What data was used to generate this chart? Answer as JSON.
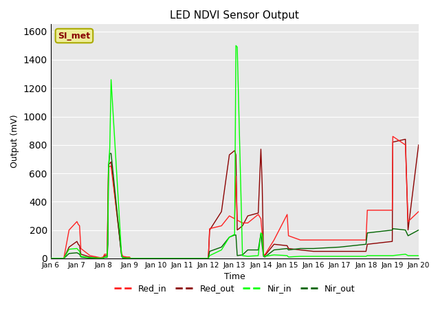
{
  "title": "LED NDVI Sensor Output",
  "xlabel": "Time",
  "ylabel": "Output (mV)",
  "ylim": [
    0,
    1650
  ],
  "yticks": [
    0,
    200,
    400,
    600,
    800,
    1000,
    1200,
    1400,
    1600
  ],
  "bg_color": "#e8e8e8",
  "fig_color": "#ffffff",
  "annotation_text": "SI_met",
  "annotation_bg": "#eeee99",
  "annotation_fg": "#880000",
  "annotation_border": "#aaaa00",
  "colors": {
    "Red_in": "#ff2020",
    "Red_out": "#8b0000",
    "Nir_in": "#00ff00",
    "Nir_out": "#006400"
  },
  "xtick_positions": [
    6,
    7,
    8,
    9,
    10,
    11,
    12,
    13,
    14,
    15,
    16,
    17,
    18,
    19,
    20
  ],
  "xtick_labels": [
    "Jan 6",
    "Jan 7",
    "Jan 8",
    "Jan 9",
    "Jan 10",
    "Jan 11",
    "Jan 12",
    "Jan 13",
    "Jan 14",
    "Jan 15",
    "Jan 16",
    "Jan 17",
    "Jan 18",
    "Jan 19",
    "Jan 20"
  ],
  "xlim": [
    6,
    20
  ],
  "Red_in_x": [
    6.0,
    6.5,
    6.7,
    7.0,
    7.05,
    7.1,
    7.15,
    7.5,
    7.9,
    8.0,
    8.05,
    8.15,
    8.18,
    8.2,
    8.25,
    8.3,
    8.7,
    8.75,
    8.9,
    9.0,
    9.05,
    12.0,
    12.05,
    12.5,
    12.8,
    13.0,
    13.05,
    13.1,
    13.3,
    13.5,
    13.9,
    14.0,
    14.05,
    14.1,
    14.15,
    14.5,
    15.0,
    15.05,
    15.5,
    16.0,
    16.5,
    17.0,
    17.5,
    18.0,
    18.05,
    19.0,
    19.02,
    19.5,
    19.6,
    20.0
  ],
  "Red_in_y": [
    0,
    0,
    200,
    260,
    240,
    230,
    70,
    20,
    5,
    10,
    30,
    30,
    420,
    640,
    650,
    650,
    35,
    15,
    10,
    10,
    0,
    0,
    210,
    230,
    300,
    280,
    580,
    270,
    250,
    250,
    310,
    280,
    170,
    30,
    25,
    130,
    310,
    160,
    130,
    130,
    130,
    130,
    130,
    130,
    340,
    340,
    860,
    800,
    260,
    330
  ],
  "Red_out_x": [
    6.0,
    6.5,
    6.7,
    7.0,
    7.05,
    7.1,
    7.15,
    7.5,
    7.9,
    8.0,
    8.05,
    8.15,
    8.18,
    8.2,
    8.25,
    8.3,
    8.7,
    8.75,
    8.9,
    9.0,
    9.05,
    12.0,
    12.05,
    12.5,
    12.8,
    13.0,
    13.05,
    13.1,
    13.3,
    13.5,
    13.9,
    14.0,
    14.05,
    14.1,
    14.15,
    14.5,
    15.0,
    15.05,
    15.5,
    16.0,
    16.5,
    17.0,
    17.5,
    18.0,
    18.05,
    19.0,
    19.02,
    19.5,
    19.6,
    20.0
  ],
  "Red_out_y": [
    0,
    0,
    80,
    120,
    100,
    90,
    30,
    10,
    3,
    5,
    20,
    20,
    350,
    660,
    670,
    680,
    20,
    10,
    5,
    5,
    0,
    0,
    200,
    330,
    730,
    760,
    730,
    200,
    230,
    300,
    320,
    770,
    520,
    25,
    20,
    100,
    90,
    70,
    60,
    50,
    50,
    50,
    50,
    50,
    100,
    120,
    820,
    840,
    200,
    800
  ],
  "Nir_in_x": [
    6.0,
    6.5,
    6.7,
    7.0,
    7.05,
    7.1,
    7.15,
    7.5,
    7.9,
    8.0,
    8.05,
    8.15,
    8.18,
    8.2,
    8.25,
    8.3,
    8.7,
    8.75,
    8.9,
    9.0,
    9.05,
    12.0,
    12.05,
    12.5,
    12.8,
    13.0,
    13.05,
    13.1,
    13.3,
    13.5,
    13.9,
    14.0,
    14.05,
    14.1,
    14.15,
    14.5,
    15.0,
    15.05,
    15.5,
    16.0,
    16.5,
    17.0,
    17.5,
    18.0,
    18.05,
    19.0,
    19.02,
    19.5,
    19.6,
    20.0
  ],
  "Nir_in_y": [
    0,
    0,
    65,
    70,
    60,
    50,
    15,
    5,
    2,
    3,
    10,
    10,
    200,
    630,
    780,
    1260,
    20,
    5,
    3,
    3,
    0,
    0,
    20,
    60,
    150,
    170,
    1500,
    1490,
    20,
    15,
    20,
    180,
    170,
    20,
    15,
    25,
    20,
    10,
    15,
    15,
    15,
    15,
    15,
    15,
    20,
    20,
    20,
    30,
    20,
    20
  ],
  "Nir_out_x": [
    6.0,
    6.5,
    6.7,
    7.0,
    7.05,
    7.1,
    7.15,
    7.5,
    7.9,
    8.0,
    8.05,
    8.15,
    8.18,
    8.2,
    8.25,
    8.3,
    8.7,
    8.75,
    8.9,
    9.0,
    9.05,
    12.0,
    12.05,
    12.5,
    12.8,
    13.0,
    13.05,
    13.1,
    13.3,
    13.5,
    13.9,
    14.0,
    14.05,
    14.1,
    14.15,
    14.5,
    15.0,
    15.05,
    15.5,
    16.0,
    16.5,
    17.0,
    17.5,
    18.0,
    18.05,
    19.0,
    19.02,
    19.5,
    19.6,
    20.0
  ],
  "Nir_out_y": [
    0,
    0,
    35,
    40,
    35,
    30,
    10,
    3,
    1,
    2,
    8,
    8,
    100,
    640,
    740,
    740,
    15,
    3,
    2,
    2,
    0,
    0,
    50,
    80,
    150,
    165,
    165,
    20,
    25,
    60,
    60,
    175,
    90,
    15,
    10,
    60,
    70,
    60,
    70,
    70,
    75,
    80,
    90,
    100,
    180,
    200,
    210,
    200,
    160,
    200
  ]
}
